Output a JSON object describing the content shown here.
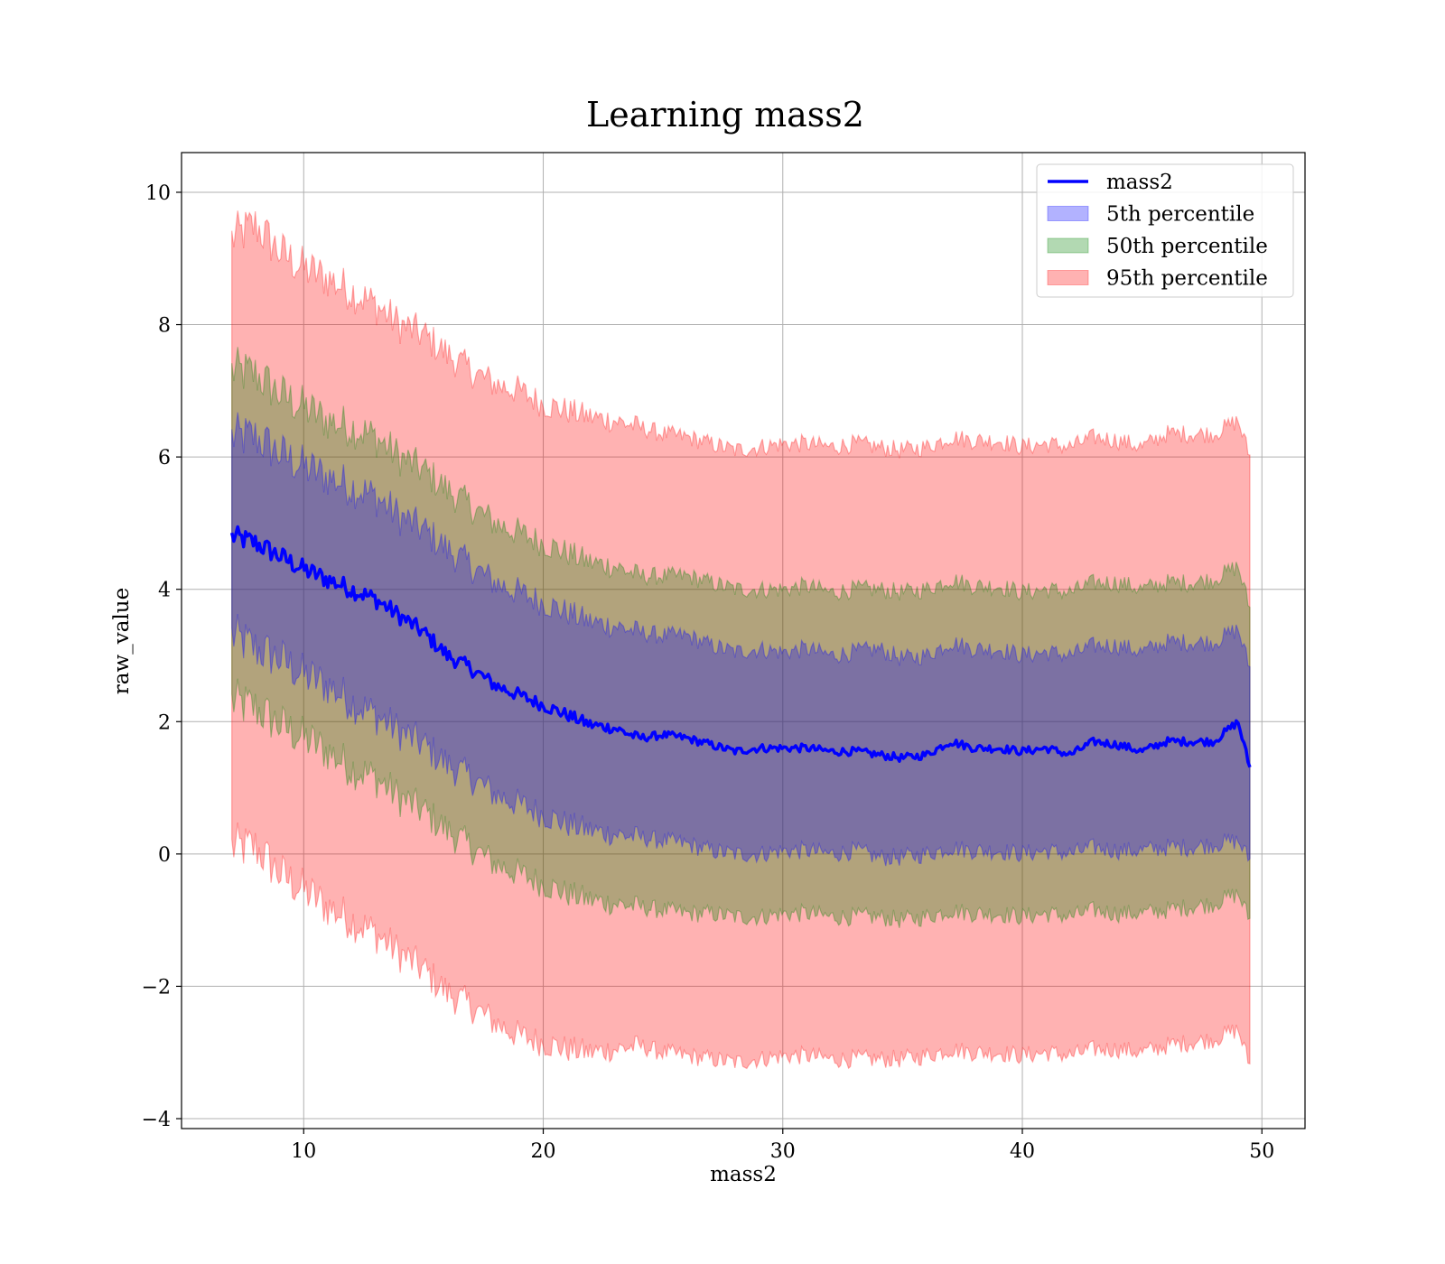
{
  "chart_data": {
    "type": "area",
    "title": "Learning mass2",
    "xlabel": "mass2",
    "ylabel": "raw_value",
    "xlim": [
      4.9,
      51.8
    ],
    "ylim": [
      -4.15,
      10.6
    ],
    "xticks": [
      10,
      20,
      30,
      40,
      50
    ],
    "xtick_labels": [
      "10",
      "20",
      "30",
      "40",
      "50"
    ],
    "yticks": [
      -4,
      -2,
      0,
      2,
      4,
      6,
      8,
      10
    ],
    "ytick_labels": [
      "−4",
      "−2",
      "0",
      "2",
      "4",
      "6",
      "8",
      "10"
    ],
    "grid": true,
    "legend_position": "top-right",
    "x": [
      7.0,
      8.0,
      9.0,
      10.0,
      11.0,
      12.0,
      13.0,
      14.0,
      15.0,
      16.0,
      17.0,
      18.0,
      19.0,
      20.0,
      21.0,
      22.0,
      23.0,
      24.0,
      25.0,
      26.0,
      27.0,
      28.0,
      29.0,
      30.0,
      31.0,
      32.0,
      33.0,
      34.0,
      35.0,
      36.0,
      37.0,
      38.0,
      39.0,
      40.0,
      41.0,
      42.0,
      43.0,
      44.0,
      45.0,
      46.0,
      47.0,
      48.0,
      49.0,
      49.5
    ],
    "series": [
      {
        "name": "mass2",
        "kind": "line",
        "color": "#0000ff",
        "values": [
          4.8,
          4.7,
          4.5,
          4.3,
          4.15,
          4.0,
          3.85,
          3.6,
          3.35,
          3.0,
          2.8,
          2.55,
          2.4,
          2.25,
          2.1,
          1.95,
          1.9,
          1.75,
          1.8,
          1.75,
          1.65,
          1.55,
          1.6,
          1.6,
          1.6,
          1.55,
          1.55,
          1.5,
          1.45,
          1.5,
          1.7,
          1.6,
          1.6,
          1.55,
          1.6,
          1.5,
          1.7,
          1.65,
          1.55,
          1.7,
          1.7,
          1.7,
          2.0,
          1.3
        ]
      },
      {
        "name": "5th percentile",
        "kind": "band",
        "color": "#0000ff",
        "lower": [
          3.3,
          3.1,
          2.95,
          2.7,
          2.55,
          2.3,
          2.1,
          1.85,
          1.65,
          1.35,
          1.15,
          0.9,
          0.75,
          0.6,
          0.45,
          0.35,
          0.3,
          0.25,
          0.2,
          0.15,
          0.05,
          0.0,
          0.0,
          0.05,
          0.05,
          0.0,
          0.05,
          -0.05,
          -0.05,
          0.0,
          0.1,
          0.05,
          0.05,
          0.0,
          0.05,
          0.0,
          0.1,
          0.05,
          0.05,
          0.1,
          0.1,
          0.15,
          0.2,
          -0.1
        ],
        "upper": [
          6.3,
          6.3,
          6.05,
          5.85,
          5.7,
          5.55,
          5.4,
          5.1,
          4.9,
          4.6,
          4.35,
          4.1,
          3.95,
          3.8,
          3.65,
          3.5,
          3.45,
          3.35,
          3.3,
          3.3,
          3.15,
          3.05,
          3.1,
          3.05,
          3.1,
          3.0,
          3.05,
          3.1,
          2.95,
          3.0,
          3.2,
          3.1,
          3.1,
          3.0,
          3.05,
          3.0,
          3.15,
          3.15,
          3.05,
          3.2,
          3.2,
          3.2,
          3.4,
          2.8
        ]
      },
      {
        "name": "50th percentile",
        "kind": "band",
        "color": "#008000",
        "lower": [
          2.3,
          2.2,
          1.95,
          1.75,
          1.55,
          1.3,
          1.15,
          0.85,
          0.65,
          0.35,
          0.1,
          -0.15,
          -0.3,
          -0.45,
          -0.6,
          -0.7,
          -0.75,
          -0.8,
          -0.85,
          -0.9,
          -0.9,
          -0.95,
          -0.95,
          -0.9,
          -0.9,
          -0.95,
          -0.95,
          -0.95,
          -1.0,
          -0.95,
          -0.85,
          -0.9,
          -0.9,
          -0.95,
          -0.9,
          -0.95,
          -0.85,
          -0.9,
          -0.9,
          -0.85,
          -0.8,
          -0.75,
          -0.6,
          -1.0
        ],
        "upper": [
          7.3,
          7.25,
          6.95,
          6.75,
          6.55,
          6.45,
          6.3,
          6.0,
          5.8,
          5.5,
          5.25,
          5.0,
          4.85,
          4.7,
          4.55,
          4.4,
          4.35,
          4.2,
          4.2,
          4.2,
          4.1,
          4.0,
          4.0,
          4.0,
          4.05,
          3.95,
          4.0,
          4.0,
          3.95,
          4.0,
          4.15,
          4.05,
          4.05,
          3.95,
          4.0,
          3.95,
          4.1,
          4.1,
          4.0,
          4.1,
          4.1,
          4.15,
          4.35,
          3.7
        ]
      },
      {
        "name": "95th percentile",
        "kind": "band",
        "color": "#ff0000",
        "lower": [
          0.1,
          0.1,
          -0.3,
          -0.55,
          -0.8,
          -1.0,
          -1.2,
          -1.5,
          -1.75,
          -2.1,
          -2.3,
          -2.55,
          -2.75,
          -2.85,
          -2.95,
          -3.0,
          -2.95,
          -2.9,
          -3.0,
          -3.05,
          -3.1,
          -3.15,
          -3.1,
          -3.05,
          -3.05,
          -3.1,
          -3.1,
          -3.1,
          -3.1,
          -3.05,
          -2.95,
          -3.0,
          -3.0,
          -3.05,
          -3.0,
          -3.05,
          -2.95,
          -2.95,
          -3.0,
          -2.9,
          -2.85,
          -2.8,
          -2.65,
          -3.2
        ],
        "upper": [
          9.3,
          9.5,
          9.1,
          8.85,
          8.7,
          8.5,
          8.3,
          8.0,
          7.85,
          7.55,
          7.3,
          7.1,
          7.0,
          6.8,
          6.7,
          6.6,
          6.55,
          6.45,
          6.35,
          6.3,
          6.2,
          6.1,
          6.15,
          6.2,
          6.2,
          6.15,
          6.2,
          6.15,
          6.1,
          6.15,
          6.3,
          6.25,
          6.25,
          6.15,
          6.2,
          6.15,
          6.3,
          6.25,
          6.15,
          6.35,
          6.35,
          6.35,
          6.55,
          6.0
        ]
      }
    ]
  }
}
